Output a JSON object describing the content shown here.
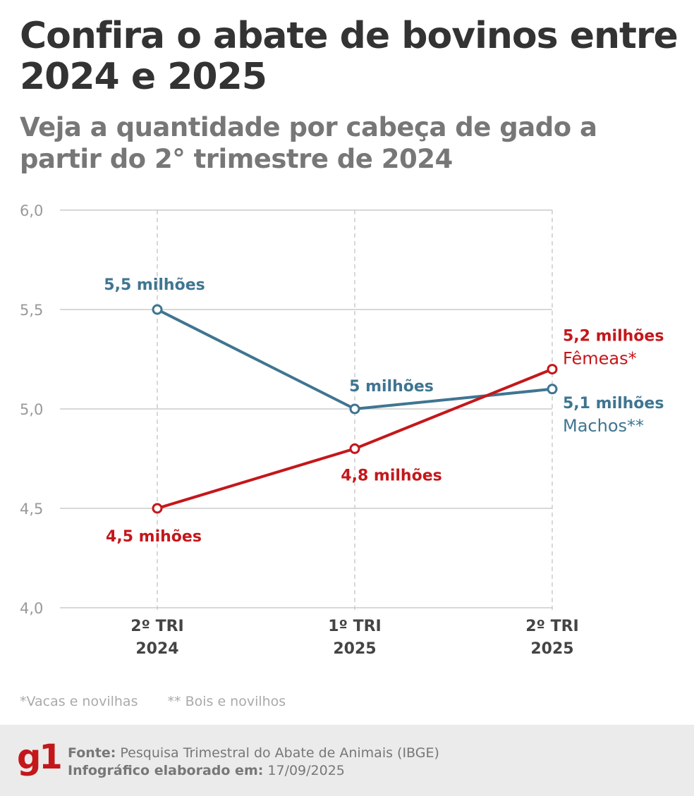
{
  "title": "Confira o abate de bovinos entre 2024 e 2025",
  "subtitle": "Veja a quantidade por cabeça de gado a partir do 2° trimestre de 2024",
  "chart_data": {
    "type": "line",
    "categories": [
      [
        "2º TRI",
        "2024"
      ],
      [
        "1º TRI",
        "2025"
      ],
      [
        "2º TRI",
        "2025"
      ]
    ],
    "ylim": [
      4.0,
      6.0
    ],
    "yticks": [
      "4,0",
      "4,5",
      "5,0",
      "5,5",
      "6,0"
    ],
    "ytick_values": [
      4.0,
      4.5,
      5.0,
      5.5,
      6.0
    ],
    "grid": true,
    "unit": "milhões de cabeças",
    "series": [
      {
        "name": "Machos**",
        "color": "#3f7591",
        "values": [
          5.5,
          5.0,
          5.1
        ],
        "labels": [
          "5,5 milhões",
          "5 milhões",
          "5,1 milhões"
        ]
      },
      {
        "name": "Fêmeas*",
        "color": "#c4171b",
        "values": [
          4.5,
          4.8,
          5.2
        ],
        "labels": [
          "4,5 mihões",
          "4,8 milhões",
          "5,2 milhões"
        ]
      }
    ]
  },
  "notes": [
    "*Vacas e novilhas",
    "** Bois e novilhos"
  ],
  "footer": {
    "logo": "g1",
    "source_label": "Fonte:",
    "source": "Pesquisa Trimestral do Abate de Animais (IBGE)",
    "date_label": "Infográfico elaborado em:",
    "date": "17/09/2025"
  }
}
